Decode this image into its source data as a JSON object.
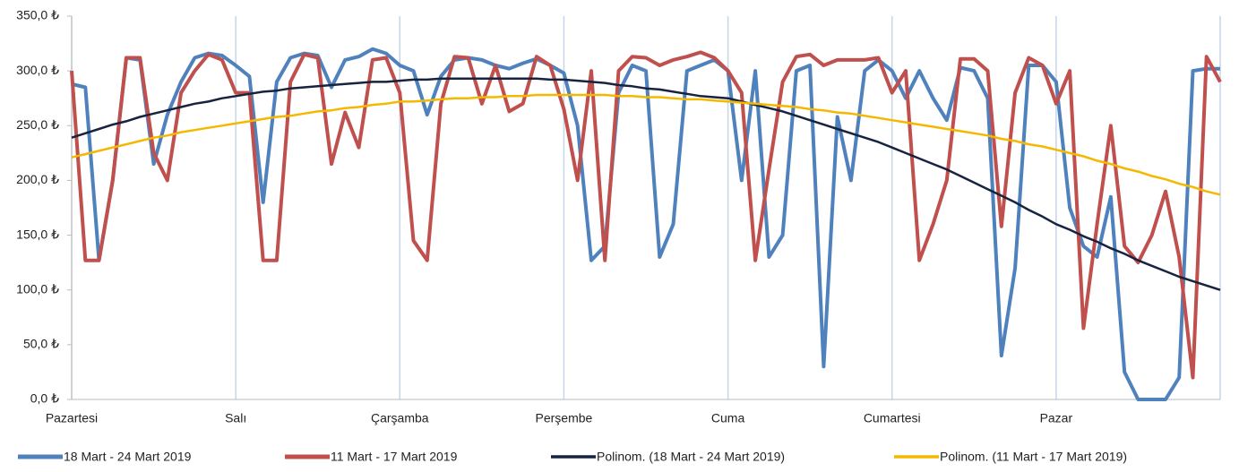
{
  "chart_data": {
    "type": "line",
    "categories": [
      "Pazartesi",
      null,
      null,
      null,
      null,
      null,
      null,
      null,
      null,
      null,
      null,
      null,
      "Salı",
      null,
      null,
      null,
      null,
      null,
      null,
      null,
      null,
      null,
      null,
      null,
      "Çarşamba",
      null,
      null,
      null,
      null,
      null,
      null,
      null,
      null,
      null,
      null,
      null,
      "Perşembe",
      null,
      null,
      null,
      null,
      null,
      null,
      null,
      null,
      null,
      null,
      null,
      "Cuma",
      null,
      null,
      null,
      null,
      null,
      null,
      null,
      null,
      null,
      null,
      null,
      "Cumartesi",
      null,
      null,
      null,
      null,
      null,
      null,
      null,
      null,
      null,
      null,
      null,
      "Pazar",
      null,
      null,
      null,
      null,
      null,
      null,
      null,
      null,
      null,
      null,
      null,
      null
    ],
    "ylim": [
      0,
      350
    ],
    "yticks": [
      {
        "value": 0,
        "label": "0,0 ₺"
      },
      {
        "value": 50,
        "label": "50,0 ₺"
      },
      {
        "value": 100,
        "label": "100,0 ₺"
      },
      {
        "value": 150,
        "label": "150,0 ₺"
      },
      {
        "value": 200,
        "label": "200,0 ₺"
      },
      {
        "value": 250,
        "label": "250,0 ₺"
      },
      {
        "value": 300,
        "label": "300,0 ₺"
      },
      {
        "value": 350,
        "label": "350,0 ₺"
      }
    ],
    "series": [
      {
        "name": "18 Mart - 24 Mart 2019",
        "color": "#4f81bd",
        "width": 4,
        "values": [
          288,
          285,
          127,
          200,
          312,
          310,
          215,
          260,
          290,
          312,
          316,
          314,
          305,
          295,
          180,
          290,
          312,
          316,
          314,
          285,
          310,
          313,
          320,
          316,
          305,
          300,
          260,
          295,
          310,
          312,
          310,
          305,
          302,
          307,
          311,
          305,
          298,
          250,
          127,
          140,
          280,
          305,
          300,
          130,
          160,
          300,
          305,
          310,
          300,
          200,
          300,
          130,
          150,
          300,
          305,
          30,
          258,
          200,
          300,
          310,
          300,
          275,
          300,
          275,
          255,
          303,
          300,
          275,
          40,
          120,
          305,
          305,
          290,
          175,
          140,
          130,
          185,
          25,
          0,
          0,
          0,
          20,
          300,
          302,
          302
        ]
      },
      {
        "name": "11 Mart - 17 Mart 2019",
        "color": "#c0504d",
        "width": 4,
        "values": [
          300,
          127,
          127,
          200,
          312,
          312,
          225,
          200,
          280,
          300,
          315,
          310,
          280,
          280,
          127,
          127,
          290,
          315,
          312,
          215,
          262,
          230,
          310,
          312,
          280,
          145,
          127,
          270,
          313,
          312,
          270,
          305,
          263,
          270,
          313,
          305,
          265,
          200,
          300,
          127,
          300,
          313,
          312,
          305,
          310,
          313,
          317,
          312,
          300,
          280,
          127,
          210,
          290,
          313,
          315,
          305,
          310,
          310,
          310,
          312,
          280,
          300,
          127,
          160,
          200,
          311,
          311,
          300,
          158,
          280,
          312,
          305,
          270,
          300,
          65,
          160,
          250,
          140,
          125,
          150,
          190,
          130,
          20,
          313,
          290
        ]
      },
      {
        "name": "Polinom. (18 Mart - 24 Mart 2019)",
        "color": "#17233f",
        "width": 2.5,
        "values": [
          239,
          243,
          247,
          251,
          254,
          258,
          261,
          264,
          267,
          270,
          272,
          275,
          277,
          279,
          281,
          282,
          284,
          285,
          286,
          287,
          288,
          289,
          290,
          290,
          291,
          292,
          292,
          293,
          293,
          293,
          293,
          293,
          293,
          293,
          293,
          292,
          292,
          291,
          290,
          289,
          287,
          286,
          284,
          283,
          281,
          279,
          277,
          276,
          275,
          272,
          269,
          266,
          263,
          259,
          255,
          251,
          247,
          243,
          239,
          235,
          230,
          225,
          220,
          215,
          210,
          204,
          198,
          192,
          186,
          180,
          173,
          167,
          160,
          155,
          149,
          144,
          138,
          133,
          127,
          122,
          117,
          112,
          108,
          104,
          100
        ]
      },
      {
        "name": "Polinom. (11 Mart - 17 Mart 2019)",
        "color": "#f5b800",
        "width": 2.5,
        "values": [
          221,
          224,
          227,
          230,
          233,
          236,
          239,
          241,
          244,
          246,
          248,
          250,
          252,
          254,
          256,
          258,
          259,
          261,
          263,
          264,
          266,
          267,
          269,
          270,
          272,
          272,
          273,
          274,
          275,
          275,
          276,
          276,
          277,
          277,
          278,
          278,
          278,
          278,
          278,
          278,
          277,
          277,
          276,
          276,
          275,
          274,
          274,
          273,
          272,
          271,
          270,
          269,
          268,
          267,
          265,
          264,
          262,
          261,
          259,
          257,
          255,
          253,
          251,
          249,
          247,
          245,
          243,
          241,
          238,
          236,
          233,
          231,
          228,
          225,
          222,
          218,
          215,
          211,
          208,
          204,
          201,
          197,
          194,
          190,
          187
        ]
      }
    ]
  }
}
